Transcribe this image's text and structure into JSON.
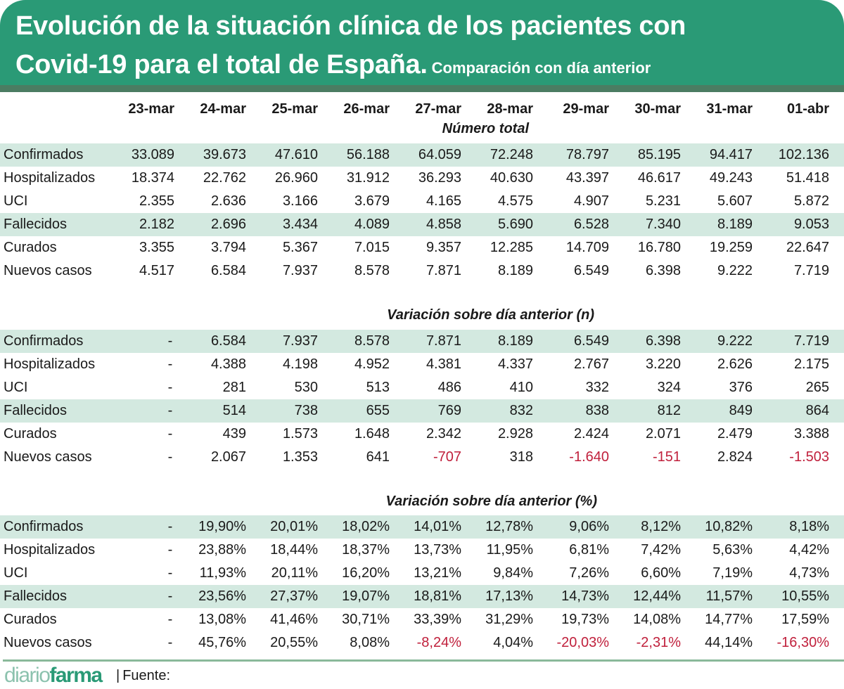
{
  "header": {
    "title_line1": "Evolución de la situación clínica de los pacientes con",
    "title_line2": "Covid-19 para el total de España.",
    "subtitle": "Comparación con día anterior"
  },
  "colors": {
    "header_green": "#2a9a76",
    "header_strip": "#4b7c62",
    "row_shade": "#d3e9e0",
    "negative": "#c0203c",
    "footer_line": "#8ab99a"
  },
  "dates": [
    "23-mar",
    "24-mar",
    "25-mar",
    "26-mar",
    "27-mar",
    "28-mar",
    "29-mar",
    "30-mar",
    "31-mar",
    "01-abr"
  ],
  "sections": [
    {
      "title": "Número total",
      "rows": [
        {
          "label": "Confirmados",
          "shaded": true,
          "values": [
            "33.089",
            "39.673",
            "47.610",
            "56.188",
            "64.059",
            "72.248",
            "78.797",
            "85.195",
            "94.417",
            "102.136"
          ]
        },
        {
          "label": "Hospitalizados",
          "shaded": false,
          "values": [
            "18.374",
            "22.762",
            "26.960",
            "31.912",
            "36.293",
            "40.630",
            "43.397",
            "46.617",
            "49.243",
            "51.418"
          ]
        },
        {
          "label": "UCI",
          "shaded": false,
          "values": [
            "2.355",
            "2.636",
            "3.166",
            "3.679",
            "4.165",
            "4.575",
            "4.907",
            "5.231",
            "5.607",
            "5.872"
          ]
        },
        {
          "label": "Fallecidos",
          "shaded": true,
          "values": [
            "2.182",
            "2.696",
            "3.434",
            "4.089",
            "4.858",
            "5.690",
            "6.528",
            "7.340",
            "8.189",
            "9.053"
          ]
        },
        {
          "label": "Curados",
          "shaded": false,
          "values": [
            "3.355",
            "3.794",
            "5.367",
            "7.015",
            "9.357",
            "12.285",
            "14.709",
            "16.780",
            "19.259",
            "22.647"
          ]
        },
        {
          "label": "Nuevos casos",
          "shaded": false,
          "values": [
            "4.517",
            "6.584",
            "7.937",
            "8.578",
            "7.871",
            "8.189",
            "6.549",
            "6.398",
            "9.222",
            "7.719"
          ]
        }
      ]
    },
    {
      "title": "Variación sobre día anterior (n)",
      "rows": [
        {
          "label": "Confirmados",
          "shaded": true,
          "values": [
            "-",
            "6.584",
            "7.937",
            "8.578",
            "7.871",
            "8.189",
            "6.549",
            "6.398",
            "9.222",
            "7.719"
          ]
        },
        {
          "label": "Hospitalizados",
          "shaded": false,
          "values": [
            "-",
            "4.388",
            "4.198",
            "4.952",
            "4.381",
            "4.337",
            "2.767",
            "3.220",
            "2.626",
            "2.175"
          ]
        },
        {
          "label": "UCI",
          "shaded": false,
          "values": [
            "-",
            "281",
            "530",
            "513",
            "486",
            "410",
            "332",
            "324",
            "376",
            "265"
          ]
        },
        {
          "label": "Fallecidos",
          "shaded": true,
          "values": [
            "-",
            "514",
            "738",
            "655",
            "769",
            "832",
            "838",
            "812",
            "849",
            "864"
          ]
        },
        {
          "label": "Curados",
          "shaded": false,
          "values": [
            "-",
            "439",
            "1.573",
            "1.648",
            "2.342",
            "2.928",
            "2.424",
            "2.071",
            "2.479",
            "3.388"
          ]
        },
        {
          "label": "Nuevos casos",
          "shaded": false,
          "values": [
            "-",
            "2.067",
            "1.353",
            "641",
            "-707",
            "318",
            "-1.640",
            "-151",
            "2.824",
            "-1.503"
          ]
        }
      ]
    },
    {
      "title": "Variación sobre día anterior (%)",
      "rows": [
        {
          "label": "Confirmados",
          "shaded": true,
          "values": [
            "-",
            "19,90%",
            "20,01%",
            "18,02%",
            "14,01%",
            "12,78%",
            "9,06%",
            "8,12%",
            "10,82%",
            "8,18%"
          ]
        },
        {
          "label": "Hospitalizados",
          "shaded": false,
          "values": [
            "-",
            "23,88%",
            "18,44%",
            "18,37%",
            "13,73%",
            "11,95%",
            "6,81%",
            "7,42%",
            "5,63%",
            "4,42%"
          ]
        },
        {
          "label": "UCI",
          "shaded": false,
          "values": [
            "-",
            "11,93%",
            "20,11%",
            "16,20%",
            "13,21%",
            "9,84%",
            "7,26%",
            "6,60%",
            "7,19%",
            "4,73%"
          ]
        },
        {
          "label": "Fallecidos",
          "shaded": true,
          "values": [
            "-",
            "23,56%",
            "27,37%",
            "19,07%",
            "18,81%",
            "17,13%",
            "14,73%",
            "12,44%",
            "11,57%",
            "10,55%"
          ]
        },
        {
          "label": "Curados",
          "shaded": false,
          "values": [
            "-",
            "13,08%",
            "41,46%",
            "30,71%",
            "33,39%",
            "31,29%",
            "19,73%",
            "14,08%",
            "14,77%",
            "17,59%"
          ]
        },
        {
          "label": "Nuevos casos",
          "shaded": false,
          "values": [
            "-",
            "45,76%",
            "20,55%",
            "8,08%",
            "-8,24%",
            "4,04%",
            "-20,03%",
            "-2,31%",
            "44,14%",
            "-16,30%"
          ]
        }
      ]
    }
  ],
  "footer": {
    "logo_diario": "diario",
    "logo_farma": "farma",
    "separator": "|",
    "source_label": "Fuente:"
  }
}
